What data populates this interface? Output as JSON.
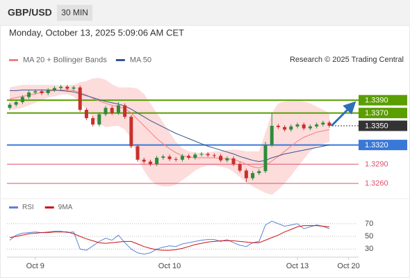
{
  "header": {
    "symbol": "GBP/USD",
    "timeframe": "30 MIN",
    "datetime": "Monday, October 13, 2025 5:09:06 AM CET",
    "credit": "Research © 2025 Trading Central"
  },
  "chart_data": [
    {
      "type": "candlestick",
      "categories": [
        null,
        null,
        null,
        null,
        "Oct 9",
        null,
        null,
        null,
        null,
        null,
        null,
        null,
        null,
        null,
        null,
        null,
        null,
        null,
        null,
        null,
        null,
        null,
        null,
        null,
        null,
        "Oct 10",
        null,
        null,
        null,
        null,
        null,
        null,
        null,
        null,
        null,
        null,
        null,
        null,
        null,
        null,
        null,
        null,
        null,
        null,
        null,
        "Oct 13",
        null,
        null,
        null,
        null,
        null,
        null,
        null,
        "Oct 20"
      ],
      "open": [
        1.3378,
        1.3383,
        1.3387,
        1.3395,
        1.3402,
        1.3404,
        1.3401,
        1.3406,
        1.3409,
        1.3411,
        1.3408,
        1.341,
        1.3375,
        1.3362,
        1.3352,
        1.3368,
        1.3378,
        1.337,
        1.3382,
        1.3364,
        1.3318,
        1.3297,
        1.3294,
        1.329,
        1.33,
        1.3302,
        1.3298,
        1.3297,
        1.3303,
        1.33,
        1.3305,
        1.3306,
        1.3304,
        1.3303,
        1.3296,
        1.3299,
        1.329,
        1.328,
        1.3268,
        1.3276,
        1.3279,
        1.332,
        1.335,
        1.3348,
        1.3344,
        1.3349,
        1.3352,
        1.3346,
        1.3349,
        1.3352,
        1.3355,
        null,
        null,
        null
      ],
      "high": [
        1.3386,
        1.339,
        1.3398,
        1.3405,
        1.3407,
        1.3407,
        1.3409,
        1.3412,
        1.3414,
        1.3414,
        1.3413,
        1.3413,
        1.3378,
        1.3365,
        1.3371,
        1.3381,
        1.3381,
        1.3387,
        1.3385,
        1.3367,
        1.3321,
        1.33,
        1.3297,
        1.3303,
        1.3305,
        1.3305,
        1.3301,
        1.3306,
        1.3306,
        1.3308,
        1.3309,
        1.3309,
        1.3307,
        1.3306,
        1.3302,
        1.3302,
        1.3293,
        1.3283,
        1.3279,
        1.3282,
        1.3325,
        1.337,
        1.3353,
        1.3351,
        1.3352,
        1.3355,
        1.3355,
        1.3352,
        1.3355,
        1.3358,
        1.3358,
        null,
        null,
        null
      ],
      "low": [
        1.3375,
        1.338,
        1.3384,
        1.3392,
        1.3399,
        1.3398,
        1.3398,
        1.3403,
        1.3406,
        1.3405,
        1.3405,
        1.3372,
        1.3359,
        1.3349,
        1.3349,
        1.3365,
        1.3367,
        1.3367,
        1.3361,
        1.3315,
        1.3294,
        1.3291,
        1.3287,
        1.3287,
        1.3297,
        1.3295,
        1.3294,
        1.3294,
        1.3297,
        1.3297,
        1.3302,
        1.3301,
        1.33,
        1.3293,
        1.3293,
        1.3287,
        1.3277,
        1.3262,
        1.3265,
        1.3273,
        1.3276,
        1.3317,
        1.3345,
        1.3341,
        1.3341,
        1.3346,
        1.3343,
        1.3343,
        1.3346,
        1.3349,
        1.3347,
        null,
        null,
        null
      ],
      "close": [
        1.3383,
        1.3387,
        1.3395,
        1.3402,
        1.3404,
        1.3401,
        1.3406,
        1.3409,
        1.3411,
        1.3408,
        1.341,
        1.3375,
        1.3362,
        1.3352,
        1.3368,
        1.3378,
        1.337,
        1.3382,
        1.3364,
        1.3318,
        1.3297,
        1.3294,
        1.329,
        1.33,
        1.3302,
        1.3298,
        1.3297,
        1.3303,
        1.33,
        1.3305,
        1.3306,
        1.3304,
        1.3303,
        1.3296,
        1.3299,
        1.329,
        1.328,
        1.3268,
        1.3276,
        1.3279,
        1.332,
        1.335,
        1.3348,
        1.3344,
        1.3349,
        1.3352,
        1.3346,
        1.3349,
        1.3352,
        1.3355,
        1.335,
        null,
        null,
        null
      ],
      "up_color": "#2e8b3a",
      "down_color": "#c8302c",
      "series": [
        {
          "name": "MA 20 + Bollinger Bands",
          "color": "#f08080",
          "band_color": "#fddcdc",
          "values": [
            1.3392,
            1.3394,
            1.3396,
            1.3398,
            1.34,
            1.3402,
            1.3404,
            1.3405,
            1.3406,
            1.3406,
            1.3405,
            1.3402,
            1.3398,
            1.3393,
            1.3389,
            1.3385,
            1.3382,
            1.338,
            1.3377,
            1.337,
            1.336,
            1.335,
            1.334,
            1.333,
            1.3322,
            1.3314,
            1.3308,
            1.3303,
            1.3301,
            1.33,
            1.33,
            1.33,
            1.33,
            1.3299,
            1.3299,
            1.3297,
            1.3294,
            1.329,
            1.3286,
            1.3284,
            1.3288,
            1.3295,
            1.3302,
            1.331,
            1.3318,
            1.3326,
            1.3332,
            1.3336,
            1.334,
            1.3342,
            1.3344,
            null,
            null,
            null
          ],
          "upper": [
            1.341,
            1.3412,
            1.3414,
            1.3414,
            1.3414,
            1.3414,
            1.3414,
            1.3414,
            1.3413,
            1.3413,
            1.3414,
            1.3418,
            1.342,
            1.3424,
            1.3425,
            1.3422,
            1.3415,
            1.341,
            1.341,
            1.341,
            1.3408,
            1.34,
            1.3385,
            1.337,
            1.3355,
            1.334,
            1.3325,
            1.3315,
            1.331,
            1.3308,
            1.3308,
            1.3308,
            1.331,
            1.331,
            1.3312,
            1.3313,
            1.3312,
            1.331,
            1.331,
            1.331,
            1.334,
            1.337,
            1.3385,
            1.3388,
            1.339,
            1.339,
            1.3388,
            1.3385,
            1.338,
            1.3375,
            1.337,
            null,
            null,
            null
          ],
          "lower": [
            1.3375,
            1.3376,
            1.3378,
            1.3382,
            1.3386,
            1.339,
            1.3394,
            1.3396,
            1.3399,
            1.3399,
            1.3396,
            1.3386,
            1.3376,
            1.3362,
            1.3353,
            1.3348,
            1.3349,
            1.335,
            1.3344,
            1.333,
            1.33,
            1.328,
            1.3265,
            1.3258,
            1.3255,
            1.3255,
            1.3258,
            1.3265,
            1.3272,
            1.328,
            1.3285,
            1.3288,
            1.3288,
            1.3286,
            1.3284,
            1.3278,
            1.327,
            1.3262,
            1.3255,
            1.325,
            1.3245,
            1.3242,
            1.325,
            1.326,
            1.3272,
            1.3285,
            1.3298,
            1.331,
            1.3318,
            1.3322,
            1.3325,
            null,
            null,
            null
          ]
        },
        {
          "name": "MA 50",
          "color": "#34558f",
          "values": [
            1.3405,
            1.3405,
            1.3406,
            1.3406,
            1.3406,
            1.3406,
            1.3406,
            1.3406,
            1.3405,
            1.3404,
            1.3403,
            1.34,
            1.3397,
            1.3394,
            1.3391,
            1.3388,
            1.3386,
            1.3384,
            1.3381,
            1.3376,
            1.337,
            1.3364,
            1.3358,
            1.3353,
            1.3348,
            1.3343,
            1.3338,
            1.3334,
            1.333,
            1.3326,
            1.3322,
            1.3318,
            1.3315,
            1.3312,
            1.3309,
            1.3306,
            1.3302,
            1.3299,
            1.3296,
            1.3294,
            1.3296,
            1.33,
            1.3303,
            1.3306,
            1.3308,
            1.331,
            1.3312,
            1.3314,
            1.3316,
            1.3318,
            1.332,
            null,
            null,
            null
          ]
        }
      ],
      "ylim": [
        1.3237,
        1.3438
      ],
      "levels": [
        {
          "value": 1.339,
          "label": "1.3390",
          "color": "#5a9e00",
          "style": "box"
        },
        {
          "value": 1.337,
          "label": "1.3370",
          "color": "#5a9e00",
          "style": "box"
        },
        {
          "value": 1.335,
          "label": "1.3350",
          "color": "#333333",
          "style": "box",
          "dashed": true
        },
        {
          "value": 1.332,
          "label": "1.3320",
          "color": "#3a78d8",
          "style": "box"
        },
        {
          "value": 1.329,
          "label": "1.3290",
          "color": "#e0506a",
          "style": "text"
        },
        {
          "value": 1.326,
          "label": "1.3260",
          "color": "#e0506a",
          "style": "text"
        }
      ]
    },
    {
      "type": "line",
      "series": [
        {
          "name": "RSI",
          "color": "#5b83d6",
          "values": [
            44,
            52,
            55,
            56,
            57,
            56,
            57,
            58,
            58,
            56,
            57,
            30,
            28,
            35,
            42,
            47,
            44,
            52,
            40,
            30,
            24,
            22,
            24,
            30,
            33,
            35,
            34,
            38,
            40,
            42,
            44,
            45,
            45,
            42,
            45,
            40,
            36,
            34,
            40,
            42,
            68,
            74,
            70,
            66,
            68,
            70,
            62,
            65,
            68,
            66,
            62,
            null,
            null,
            null
          ]
        },
        {
          "name": "9MA",
          "color": "#d01010",
          "values": [
            48,
            50,
            52,
            54,
            55,
            56,
            56,
            57,
            57,
            57,
            54,
            50,
            46,
            43,
            40,
            39,
            40,
            41,
            42,
            42,
            38,
            34,
            31,
            29,
            28,
            28,
            29,
            31,
            34,
            37,
            39,
            41,
            42,
            43,
            43,
            43,
            42,
            41,
            40,
            40,
            44,
            48,
            52,
            57,
            61,
            65,
            67,
            67,
            67,
            66,
            65,
            null,
            null,
            null
          ]
        }
      ],
      "ylim": [
        15,
        83
      ],
      "yticks": [
        70,
        50,
        30
      ],
      "grid": true
    }
  ]
}
